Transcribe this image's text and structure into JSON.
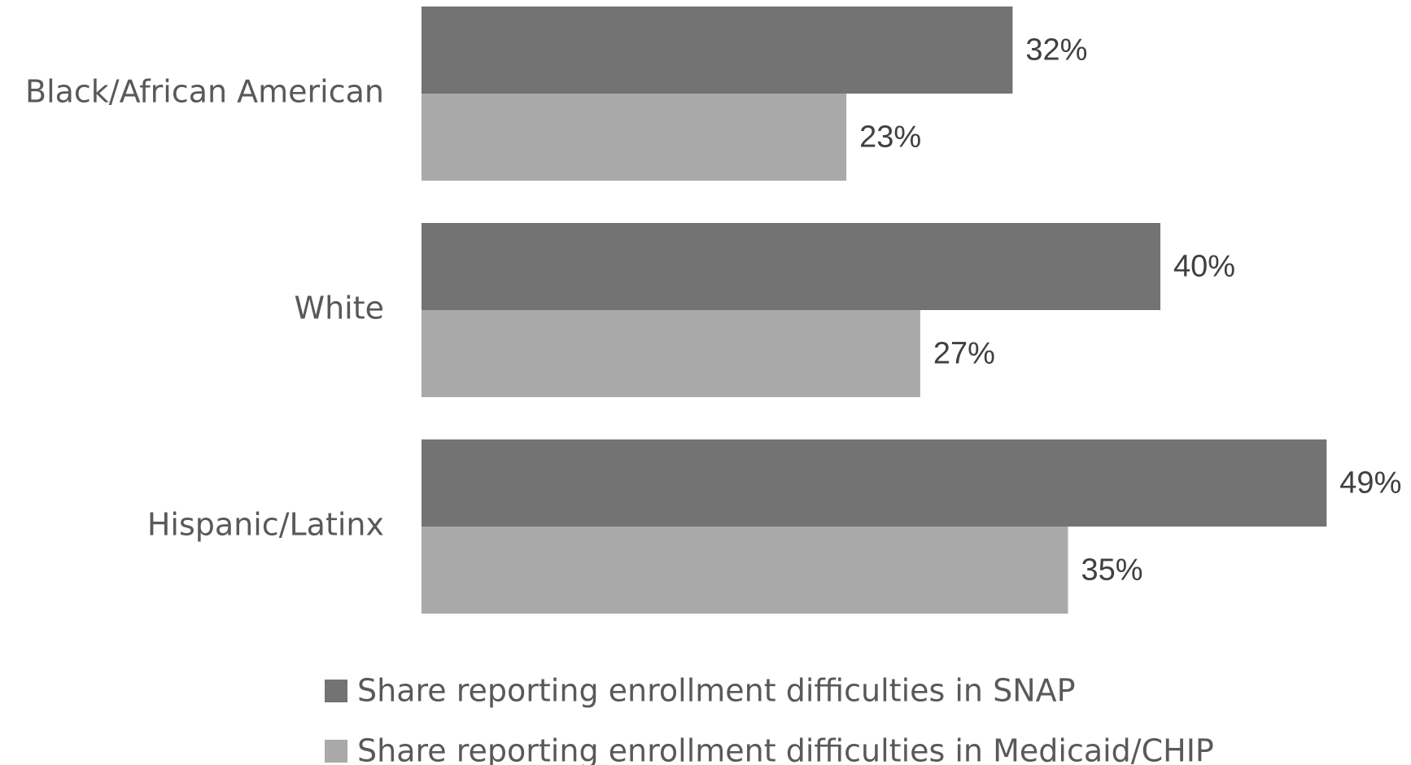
{
  "chart_data": {
    "type": "bar",
    "orientation": "horizontal",
    "categories": [
      "Black/African American",
      "White",
      "Hispanic/Latinx"
    ],
    "series": [
      {
        "name": "Share reporting enrollment difficulties in SNAP",
        "values": [
          32,
          40,
          49
        ],
        "labels": [
          "32%",
          "40%",
          "49%"
        ],
        "color": "#737373"
      },
      {
        "name": "Share reporting enrollment difficulties in Medicaid/CHIP",
        "values": [
          23,
          27,
          35
        ],
        "labels": [
          "23%",
          "27%",
          "35%"
        ],
        "color": "#a9a9a9"
      }
    ],
    "value_unit": "%",
    "xlim": [
      0,
      53.6
    ],
    "grid": false,
    "legend_position": "bottom"
  }
}
